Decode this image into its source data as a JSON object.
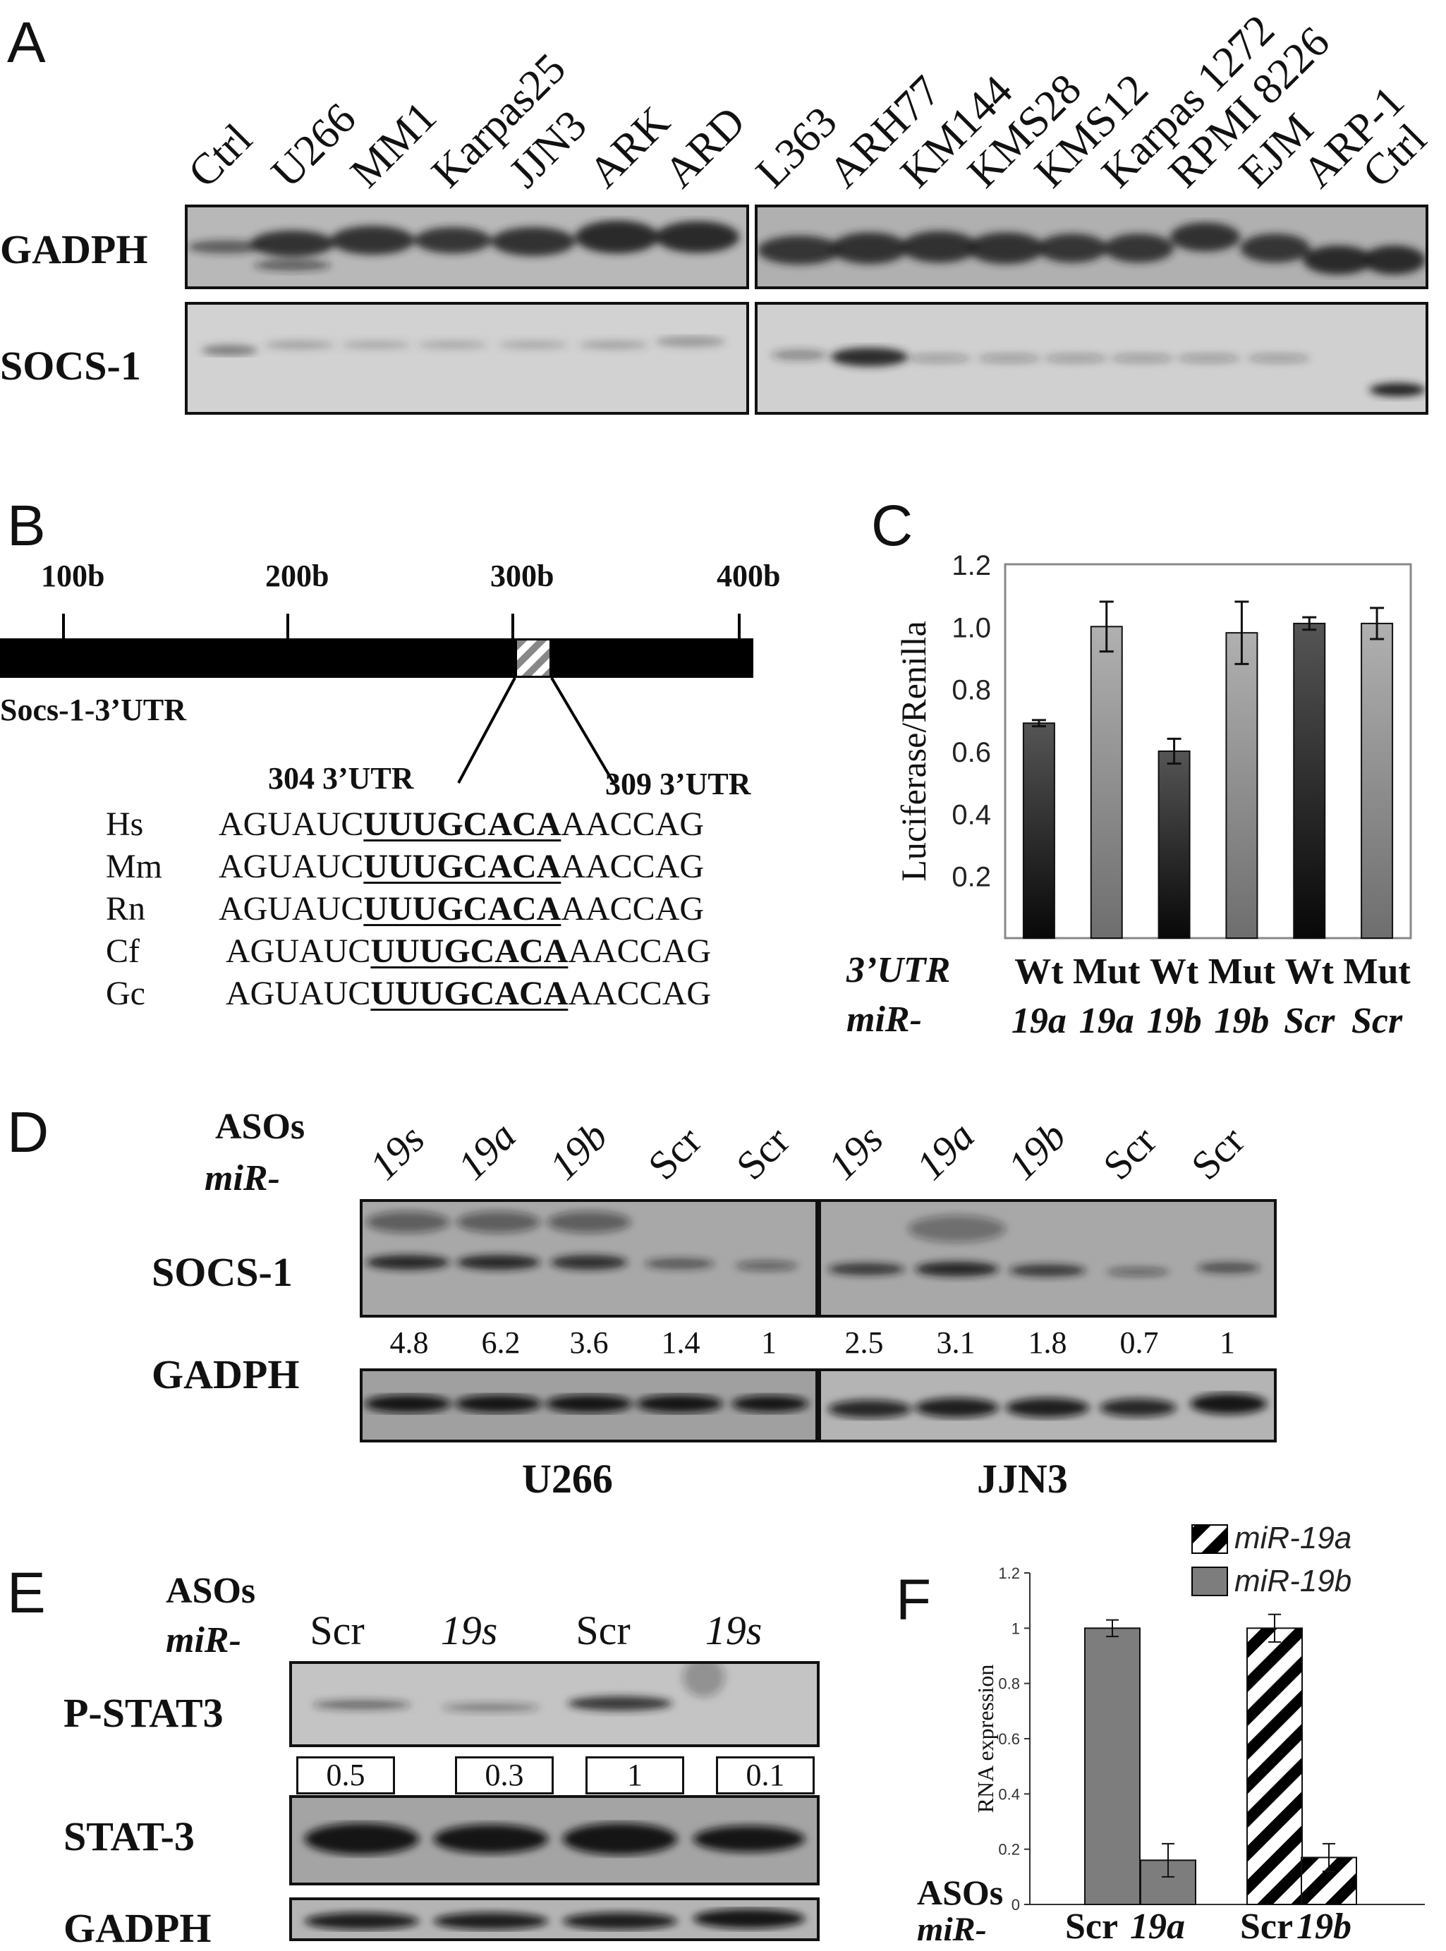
{
  "panels": {
    "A": {
      "letter": "A",
      "lanes_left": [
        "Ctrl",
        "U266",
        "MM1",
        "Karpas25",
        "JJN3",
        "ARK",
        "ARD"
      ],
      "lanes_right": [
        "L363",
        "ARH77",
        "KM144",
        "KMS28",
        "KMS12",
        "Karpas 1272",
        "RPMI 8226",
        "EJM",
        "ARP-1",
        "Ctrl"
      ],
      "row1": "GADPH",
      "row2": "SOCS-1"
    },
    "B": {
      "letter": "B",
      "scale": [
        "100b",
        "200b",
        "300b",
        "400b"
      ],
      "gene": "Socs-1-3’UTR",
      "pos_left": "304 3’UTR",
      "pos_right": "309 3’UTR",
      "seqs": [
        {
          "sp": "Hs",
          "pre": "AGUAUC",
          "site": "UUUGCACA",
          "post": "AACCAG"
        },
        {
          "sp": "Mm",
          "pre": "AGUAUC",
          "site": "UUUGCACA",
          "post": "AACCAG"
        },
        {
          "sp": "Rn",
          "pre": "AGUAUC",
          "site": "UUUGCACA",
          "post": "AACCAG"
        },
        {
          "sp": "Cf",
          "pre": "AGUAUC",
          "site": "UUUGCACA",
          "post": "AACCAG"
        },
        {
          "sp": "Gc",
          "pre": "AGUAUC",
          "site": "UUUGCACA",
          "post": "AACCAG"
        }
      ]
    },
    "C": {
      "letter": "C",
      "row_utr": "3’UTR",
      "row_mir": "miR-",
      "utr": [
        "Wt",
        "Mut",
        "Wt",
        "Mut",
        "Wt",
        "Mut"
      ],
      "mir": [
        "19a",
        "19a",
        "19b",
        "19b",
        "Scr",
        "Scr"
      ]
    },
    "D": {
      "letter": "D",
      "asos": "ASOs",
      "mir": "miR-",
      "lanes": [
        "19s",
        "19a",
        "19b",
        "Scr",
        "Scr"
      ],
      "row1": "SOCS-1",
      "row2": "GADPH",
      "vals_left": [
        "4.8",
        "6.2",
        "3.6",
        "1.4",
        "1"
      ],
      "vals_right": [
        "2.5",
        "3.1",
        "1.8",
        "0.7",
        "1"
      ],
      "cell_left": "U266",
      "cell_right": "JJN3"
    },
    "E": {
      "letter": "E",
      "asos": "ASOs",
      "mir": "miR-",
      "lanes": [
        "Scr",
        "19s",
        "Scr",
        "19s"
      ],
      "row1": "P-STAT3",
      "row2": "STAT-3",
      "row3": "GADPH",
      "vals": [
        "0.5",
        "0.3",
        "1",
        "0.1"
      ]
    },
    "F": {
      "letter": "F",
      "asos": "ASOs",
      "mir": "miR-",
      "groups": [
        "Scr",
        "19a",
        "Scr",
        "19b"
      ]
    }
  },
  "chart_data": [
    {
      "type": "bar",
      "panel": "C",
      "categories": [
        "Wt 19a",
        "Mut 19a",
        "Wt 19b",
        "Mut 19b",
        "Wt Scr",
        "Mut Scr"
      ],
      "values": [
        0.69,
        1.0,
        0.6,
        0.98,
        1.01,
        1.01
      ],
      "errors": [
        0.01,
        0.08,
        0.04,
        0.1,
        0.02,
        0.05
      ],
      "ylabel": "Luciferase/Renilla",
      "ylim": [
        0,
        1.2
      ],
      "yticks": [
        "0.2",
        "0.4",
        "0.6",
        "0.8",
        "1.0",
        "1.2"
      ],
      "colors": [
        "#2a2a2a",
        "#8c8c8c",
        "#2a2a2a",
        "#8c8c8c",
        "#2a2a2a",
        "#8c8c8c"
      ]
    },
    {
      "type": "bar",
      "panel": "F",
      "categories": [
        "Scr",
        "19a",
        "Scr",
        "19b"
      ],
      "series": [
        {
          "name": "miR-19a",
          "values": [
            null,
            null,
            1.0,
            0.17
          ],
          "errors": [
            null,
            null,
            0.05,
            0.05
          ]
        },
        {
          "name": "miR-19b",
          "values": [
            1.0,
            0.16,
            null,
            null
          ],
          "errors": [
            0.03,
            0.06,
            null,
            null
          ]
        }
      ],
      "ylabel": "RNA expression",
      "ylim": [
        0,
        1.2
      ],
      "yticks": [
        "0",
        "0.2",
        "0.4",
        "0.6",
        "0.8",
        "1",
        "1.2"
      ],
      "legend": "top-right"
    }
  ]
}
